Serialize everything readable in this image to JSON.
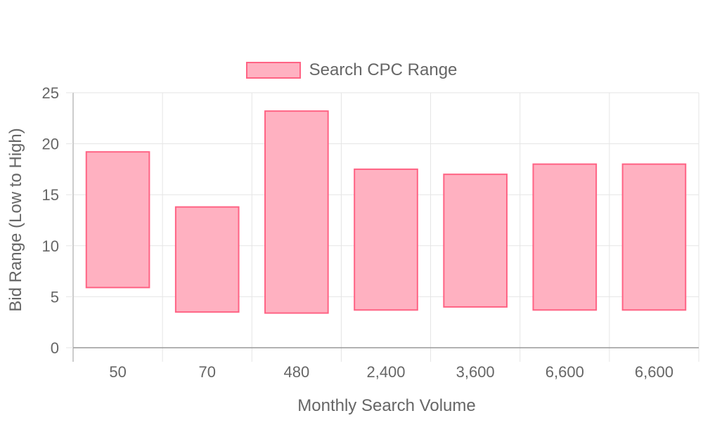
{
  "chart_data": {
    "type": "bar",
    "subtype": "floating-range",
    "legend": {
      "position": "top",
      "entries": [
        "Search CPC Range"
      ]
    },
    "xlabel": "Monthly Search Volume",
    "ylabel": "Bid Range (Low to High)",
    "categories": [
      "50",
      "70",
      "480",
      "2,400",
      "3,600",
      "6,600",
      "6,600"
    ],
    "series": [
      {
        "name": "Search CPC Range",
        "ranges": [
          [
            5.9,
            19.2
          ],
          [
            3.5,
            13.8
          ],
          [
            3.4,
            23.2
          ],
          [
            3.7,
            17.5
          ],
          [
            4.0,
            17.0
          ],
          [
            3.7,
            18.0
          ],
          [
            3.7,
            18.0
          ]
        ]
      }
    ],
    "ylim": [
      0,
      25
    ],
    "yticks": [
      0,
      5,
      10,
      15,
      20,
      25
    ],
    "grid": true,
    "colors": {
      "bar_fill": "#ffb1c1",
      "bar_border": "#ff6384",
      "grid": "#e5e5e5",
      "axis": "#999999",
      "text": "#666666"
    }
  }
}
